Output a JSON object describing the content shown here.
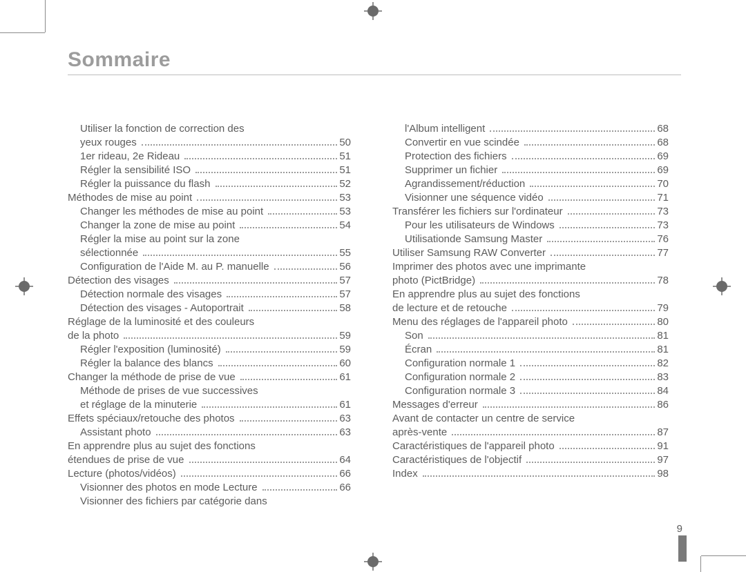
{
  "title": "Sommaire",
  "page_number": "9",
  "colors": {
    "title_color": "#9c9c9c",
    "text_color": "#5c5c5c",
    "rule_color": "#bdbdbd",
    "dot_color": "#9a9a9a",
    "crop_mark_color": "#8a8a8a",
    "thumb_mark_color": "#7a7a7a",
    "background": "#ffffff"
  },
  "typography": {
    "title_fontsize_pt": 22,
    "body_fontsize_pt": 11,
    "title_weight": 600,
    "body_weight": 400,
    "font_family": "Arial"
  },
  "left_col": [
    {
      "text_a": "Utiliser la fonction de correction des",
      "indent": "sub",
      "nopage": true
    },
    {
      "text_a": "yeux rouges",
      "page": "50",
      "indent": "sub"
    },
    {
      "text_a": "1er rideau, 2e Rideau",
      "page": "51",
      "indent": "sub"
    },
    {
      "text_a": "Régler la sensibilité ISO",
      "page": "51",
      "indent": "sub"
    },
    {
      "text_a": "Régler la puissance du flash",
      "page": "52",
      "indent": "sub"
    },
    {
      "text_a": "Méthodes de mise au point",
      "page": "53",
      "indent": ""
    },
    {
      "text_a": "Changer les méthodes de mise au point",
      "page": "53",
      "indent": "sub"
    },
    {
      "text_a": "Changer la zone de mise au point",
      "page": "54",
      "indent": "sub"
    },
    {
      "text_a": "Régler la mise au point sur la zone",
      "indent": "sub",
      "nopage": true
    },
    {
      "text_a": "sélectionnée",
      "page": "55",
      "indent": "sub"
    },
    {
      "text_a": "Configuration de l'Aide M. au P. manuelle",
      "page": "56",
      "indent": "sub"
    },
    {
      "text_a": "Détection des visages",
      "page": "57",
      "indent": ""
    },
    {
      "text_a": "Détection normale des visages",
      "page": "57",
      "indent": "sub"
    },
    {
      "text_a": "Détection des visages - Autoportrait",
      "page": "58",
      "indent": "sub"
    },
    {
      "text_a": "Réglage de la luminosité et des couleurs",
      "indent": "",
      "nopage": true
    },
    {
      "text_a": "de la photo",
      "page": "59",
      "indent": ""
    },
    {
      "text_a": "Régler l'exposition (luminosité)",
      "page": "59",
      "indent": "sub"
    },
    {
      "text_a": "Régler la balance des blancs",
      "page": "60",
      "indent": "sub"
    },
    {
      "text_a": "Changer la méthode de prise de vue",
      "page": "61",
      "indent": ""
    },
    {
      "text_a": "Méthode de prises de vue successives",
      "indent": "sub",
      "nopage": true
    },
    {
      "text_a": "et réglage de la minuterie",
      "page": "61",
      "indent": "sub"
    },
    {
      "text_a": "Effets spéciaux/retouche des photos",
      "page": "63",
      "indent": ""
    },
    {
      "text_a": "Assistant photo",
      "page": "63",
      "indent": "sub"
    },
    {
      "text_a": "En apprendre plus au sujet des fonctions",
      "indent": "",
      "nopage": true
    },
    {
      "text_a": "étendues de prise de vue",
      "page": "64",
      "indent": ""
    },
    {
      "text_a": "Lecture (photos/vidéos)",
      "page": "66",
      "indent": ""
    },
    {
      "text_a": "Visionner des photos en mode Lecture",
      "page": "66",
      "indent": "sub"
    },
    {
      "text_a": "Visionner des fichiers par catégorie dans",
      "indent": "sub",
      "nopage": true
    }
  ],
  "right_col": [
    {
      "text_a": "l'Album intelligent",
      "page": "68",
      "indent": "sub"
    },
    {
      "text_a": "Convertir en vue scindée",
      "page": "68",
      "indent": "sub"
    },
    {
      "text_a": "Protection des fichiers",
      "page": "69",
      "indent": "sub"
    },
    {
      "text_a": "Supprimer un fichier",
      "page": "69",
      "indent": "sub"
    },
    {
      "text_a": "Agrandissement/réduction",
      "page": "70",
      "indent": "sub"
    },
    {
      "text_a": "Visionner une séquence vidéo",
      "page": "71",
      "indent": "sub"
    },
    {
      "text_a": "Transférer les fichiers sur l'ordinateur",
      "page": "73",
      "indent": ""
    },
    {
      "text_a": "Pour les utilisateurs de Windows",
      "page": "73",
      "indent": "sub"
    },
    {
      "text_a": "Utilisationde Samsung Master",
      "page": "76",
      "indent": "sub"
    },
    {
      "text_a": "Utiliser Samsung RAW Converter",
      "page": "77",
      "indent": ""
    },
    {
      "text_a": "Imprimer des photos avec une imprimante",
      "indent": "",
      "nopage": true
    },
    {
      "text_a": "photo (PictBridge)",
      "page": "78",
      "indent": ""
    },
    {
      "text_a": "En apprendre plus au sujet des fonctions",
      "indent": "",
      "nopage": true
    },
    {
      "text_a": "de lecture et de retouche",
      "page": "79",
      "indent": ""
    },
    {
      "text_a": "Menu des réglages de l'appareil photo",
      "page": "80",
      "indent": ""
    },
    {
      "text_a": "Son",
      "page": "81",
      "indent": "sub"
    },
    {
      "text_a": "Écran",
      "page": "81",
      "indent": "sub"
    },
    {
      "text_a": "Configuration normale 1",
      "page": "82",
      "indent": "sub"
    },
    {
      "text_a": "Configuration normale 2",
      "page": "83",
      "indent": "sub"
    },
    {
      "text_a": "Configuration normale 3",
      "page": "84",
      "indent": "sub"
    },
    {
      "text_a": "Messages d'erreur",
      "page": "86",
      "indent": ""
    },
    {
      "text_a": "Avant de contacter un centre de service",
      "indent": "",
      "nopage": true
    },
    {
      "text_a": "après-vente",
      "page": "87",
      "indent": ""
    },
    {
      "text_a": "Caractéristiques de l'appareil photo",
      "page": "91",
      "indent": ""
    },
    {
      "text_a": "Caractéristiques de l'objectif",
      "page": "97",
      "indent": ""
    },
    {
      "text_a": "Index",
      "page": "98",
      "indent": ""
    }
  ]
}
